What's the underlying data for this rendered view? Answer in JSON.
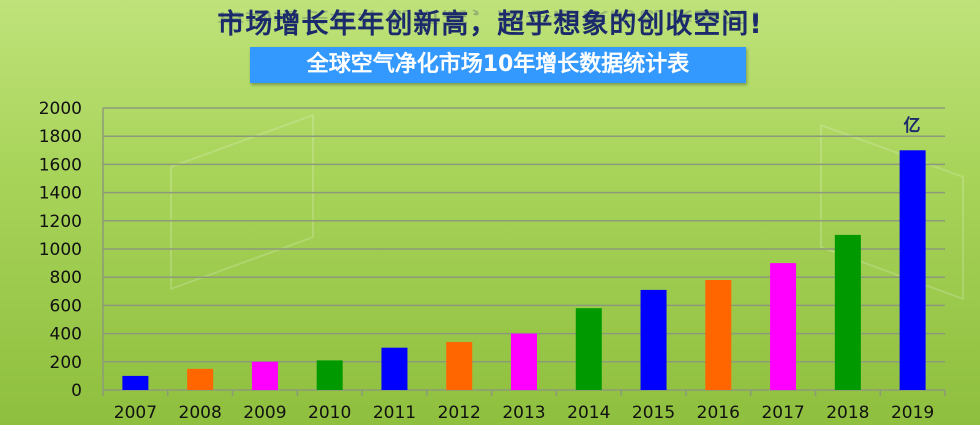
{
  "header": {
    "title": "市场增长年年创新高，超乎想象的创收空间!",
    "banner": "全球空气净化市场10年增长数据统计表"
  },
  "chart_data": {
    "type": "bar",
    "categories": [
      "2007",
      "2008",
      "2009",
      "2010",
      "2011",
      "2012",
      "2013",
      "2014",
      "2015",
      "2016",
      "2017",
      "2018",
      "2019"
    ],
    "values": [
      100,
      150,
      200,
      210,
      300,
      340,
      400,
      580,
      710,
      780,
      900,
      1100,
      1700
    ],
    "colors": [
      "#0000ff",
      "#ff6600",
      "#ff00ff",
      "#009900",
      "#0000ff",
      "#ff6600",
      "#ff00ff",
      "#009900",
      "#0000ff",
      "#ff6600",
      "#ff00ff",
      "#009900",
      "#0000ff"
    ],
    "unit_label": "亿",
    "ylim": [
      0,
      2000
    ],
    "yticks": [
      0,
      200,
      400,
      600,
      800,
      1000,
      1200,
      1400,
      1600,
      1800,
      2000
    ],
    "grid": true,
    "title": "全球空气净化市场10年增长数据统计表"
  }
}
